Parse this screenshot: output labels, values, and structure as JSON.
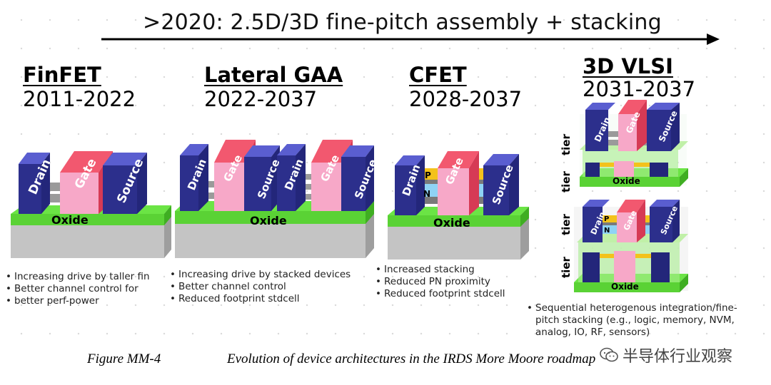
{
  "banner": {
    "text": ">2020: 2.5D/3D fine-pitch assembly + stacking"
  },
  "labels": {
    "drain": "Drain",
    "gate": "Gate",
    "source": "Source",
    "oxide": "Oxide",
    "p": "P",
    "n": "N",
    "tier": "tier"
  },
  "architectures": [
    {
      "name": "FinFET",
      "years": "2011-2022",
      "bullets": [
        "Increasing drive by taller fin",
        "Better channel control for",
        "better perf-power"
      ]
    },
    {
      "name": "Lateral GAA",
      "years": "2022-2037",
      "bullets": [
        "Increasing drive by stacked devices",
        "Better channel control",
        "Reduced footprint stdcell"
      ]
    },
    {
      "name": "CFET",
      "years": "2028-2037",
      "bullets": [
        "Increased stacking",
        "Reduced PN proximity",
        "Reduced footprint stdcell"
      ]
    },
    {
      "name": "3D VLSI",
      "years": "2031-2037",
      "bullets": [
        "Sequential heterogenous integration/fine-pitch stacking (e.g., logic, memory, NVM, analog, IO, RF, sensors)"
      ]
    }
  ],
  "caption": {
    "figure": "Figure MM-4",
    "title": "Evolution of device architectures in the IRDS More Moore roadmap"
  },
  "watermark": {
    "text": "半导体行业观察",
    "icon": "wechat-icon"
  },
  "colors": {
    "drain": "#3b3fb0",
    "gate": "#f0506a",
    "gate_inner": "#f7a8c8",
    "oxide": "#5fe03c",
    "substrate": "#bdbdbd",
    "p_layer": "#f3c21b",
    "n_layer": "#8fd3f5"
  }
}
